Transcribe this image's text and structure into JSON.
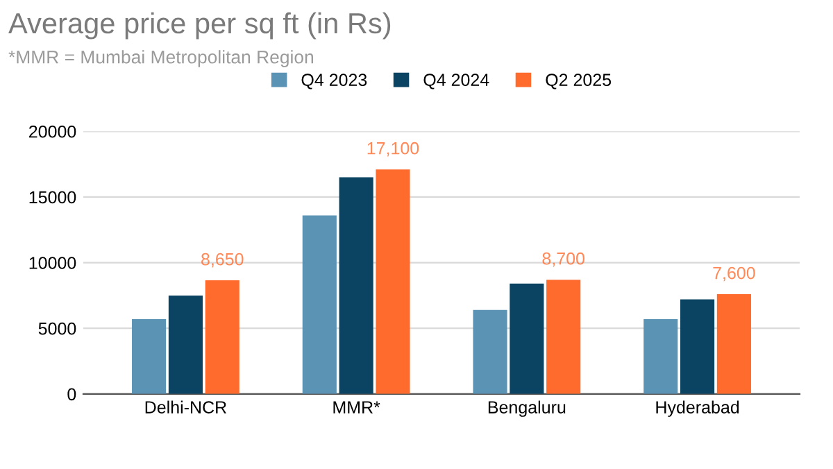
{
  "chart_data": {
    "type": "bar",
    "title": "Average price per sq ft (in Rs)",
    "subtitle": "*MMR = Mumbai Metropolitan Region",
    "categories": [
      "Delhi-NCR",
      "MMR*",
      "Bengaluru",
      "Hyderabad"
    ],
    "series": [
      {
        "name": "Q4 2023",
        "color": "#5b93b5",
        "values": [
          5700,
          13600,
          6400,
          5700
        ]
      },
      {
        "name": "Q4 2024",
        "color": "#0b4463",
        "values": [
          7500,
          16500,
          8400,
          7200
        ]
      },
      {
        "name": "Q2 2025",
        "color": "#ff6b2c",
        "values": [
          8650,
          17100,
          8700,
          7600
        ],
        "value_labels": [
          "8,650",
          "17,100",
          "8,700",
          "7,600"
        ]
      }
    ],
    "ylim": [
      0,
      20000
    ],
    "yticks": [
      0,
      5000,
      10000,
      15000,
      20000
    ],
    "grid": "y",
    "legend": "top"
  }
}
